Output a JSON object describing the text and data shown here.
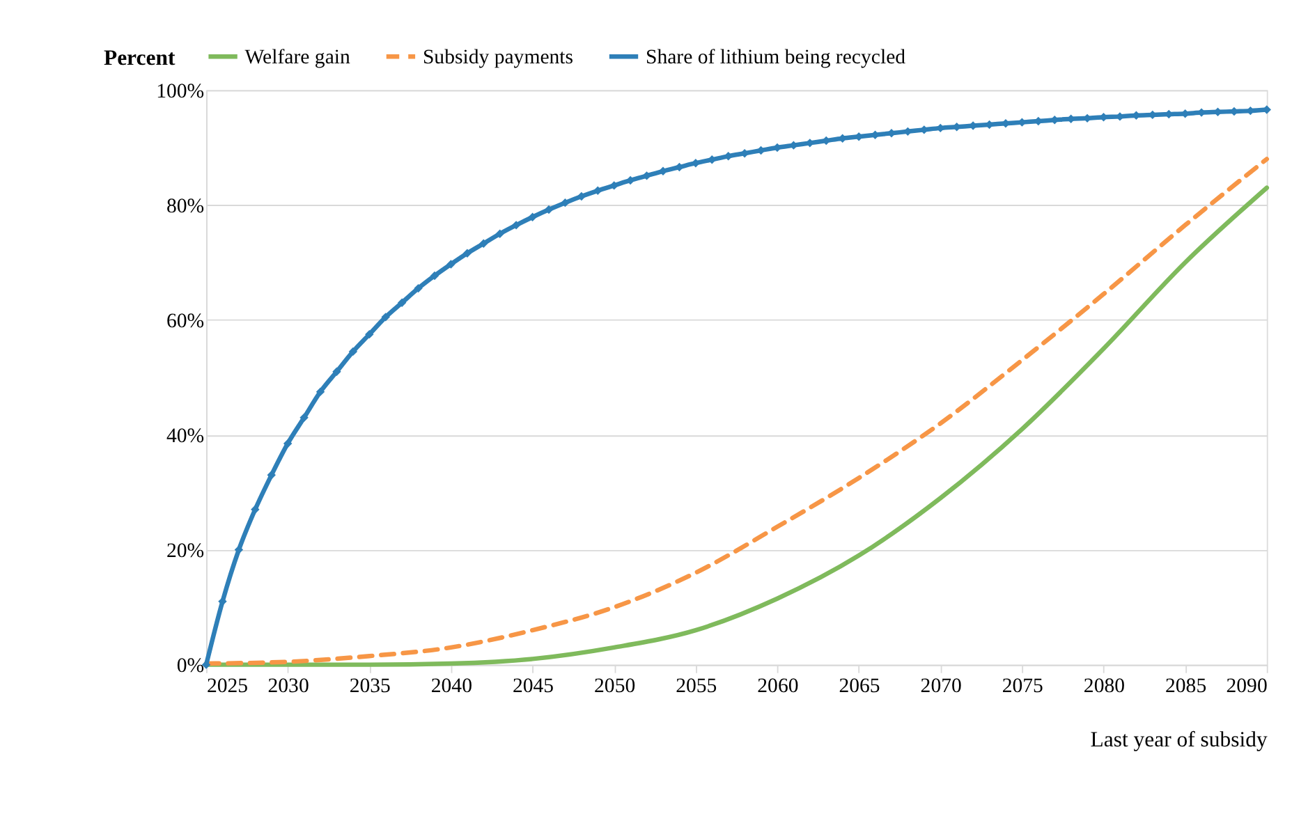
{
  "chart_data": {
    "type": "line",
    "xlabel": "Last year of subsidy",
    "ylabel": "Percent",
    "xlim": [
      2025,
      2090
    ],
    "xticks": [
      2025,
      2030,
      2035,
      2040,
      2045,
      2050,
      2055,
      2060,
      2065,
      2070,
      2075,
      2080,
      2085,
      2090
    ],
    "ylim": [
      0,
      100
    ],
    "yticks": [
      {
        "value": 0,
        "label": "0%"
      },
      {
        "value": 20,
        "label": "20%"
      },
      {
        "value": 40,
        "label": "40%"
      },
      {
        "value": 60,
        "label": "60%"
      },
      {
        "value": 80,
        "label": "80%"
      },
      {
        "value": 100,
        "label": "100%"
      }
    ],
    "grid": "y",
    "legend": "top",
    "series": [
      {
        "name": "Welfare gain",
        "color": "#7fba5c",
        "line_style": "solid",
        "marker": "none",
        "x": [
          2025,
          2030,
          2035,
          2040,
          2045,
          2050,
          2055,
          2060,
          2065,
          2070,
          2075,
          2080,
          2085,
          2090
        ],
        "values": [
          0,
          0,
          0,
          0.2,
          1,
          3,
          6,
          11.5,
          19,
          29,
          41,
          55,
          70,
          83
        ]
      },
      {
        "name": "Subsidy payments",
        "color": "#f79646",
        "line_style": "dashed",
        "marker": "none",
        "x": [
          2025,
          2030,
          2035,
          2040,
          2045,
          2050,
          2055,
          2060,
          2065,
          2070,
          2075,
          2080,
          2085,
          2090
        ],
        "values": [
          0.2,
          0.5,
          1.5,
          3,
          6,
          10,
          16,
          24,
          32.5,
          42,
          53,
          64.5,
          76.5,
          88
        ]
      },
      {
        "name": "Share of lithium being recycled",
        "color": "#2e7fb8",
        "line_style": "solid",
        "marker": "diamond",
        "x": [
          2025,
          2026,
          2027,
          2028,
          2029,
          2030,
          2031,
          2032,
          2033,
          2034,
          2035,
          2036,
          2037,
          2038,
          2039,
          2040,
          2041,
          2042,
          2043,
          2044,
          2045,
          2046,
          2047,
          2048,
          2049,
          2050,
          2051,
          2052,
          2053,
          2054,
          2055,
          2056,
          2057,
          2058,
          2059,
          2060,
          2061,
          2062,
          2063,
          2064,
          2065,
          2066,
          2067,
          2068,
          2069,
          2070,
          2071,
          2072,
          2073,
          2074,
          2075,
          2076,
          2077,
          2078,
          2079,
          2080,
          2081,
          2082,
          2083,
          2084,
          2085,
          2086,
          2087,
          2088,
          2089,
          2090
        ],
        "values": [
          0,
          11,
          20,
          27,
          33,
          38.5,
          43,
          47.5,
          51,
          54.5,
          57.5,
          60.5,
          63,
          65.5,
          67.7,
          69.7,
          71.6,
          73.3,
          75,
          76.5,
          77.9,
          79.2,
          80.4,
          81.5,
          82.5,
          83.4,
          84.3,
          85.1,
          85.9,
          86.6,
          87.3,
          87.9,
          88.5,
          89,
          89.5,
          90,
          90.4,
          90.8,
          91.2,
          91.6,
          91.9,
          92.2,
          92.5,
          92.8,
          93.1,
          93.4,
          93.6,
          93.8,
          94,
          94.2,
          94.4,
          94.6,
          94.8,
          95,
          95.1,
          95.3,
          95.4,
          95.6,
          95.7,
          95.8,
          95.9,
          96.1,
          96.2,
          96.3,
          96.4,
          96.6
        ]
      }
    ]
  }
}
